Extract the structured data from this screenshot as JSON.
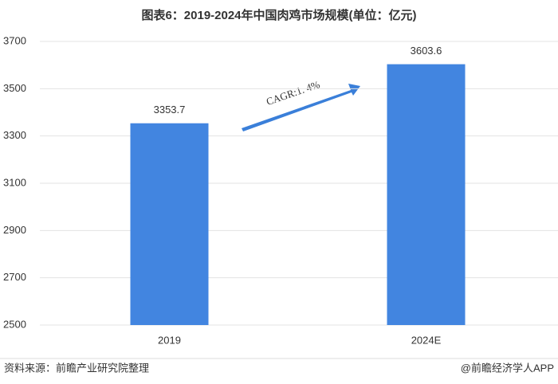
{
  "chart_data": {
    "type": "bar",
    "title": "图表6：2019-2024年中国肉鸡市场规模(单位：亿元)",
    "categories": [
      "2019",
      "2024E"
    ],
    "values": [
      3353.7,
      3603.6
    ],
    "color": "#4285e0",
    "ylim": [
      2500,
      3700
    ],
    "yticks": [
      2500,
      2700,
      2900,
      3100,
      3300,
      3500,
      3700
    ],
    "grid": true,
    "annotation": "CAGR:1. 4%",
    "source": "资料来源：前瞻产业研究院整理",
    "credit": "@前瞻经济学人APP"
  }
}
